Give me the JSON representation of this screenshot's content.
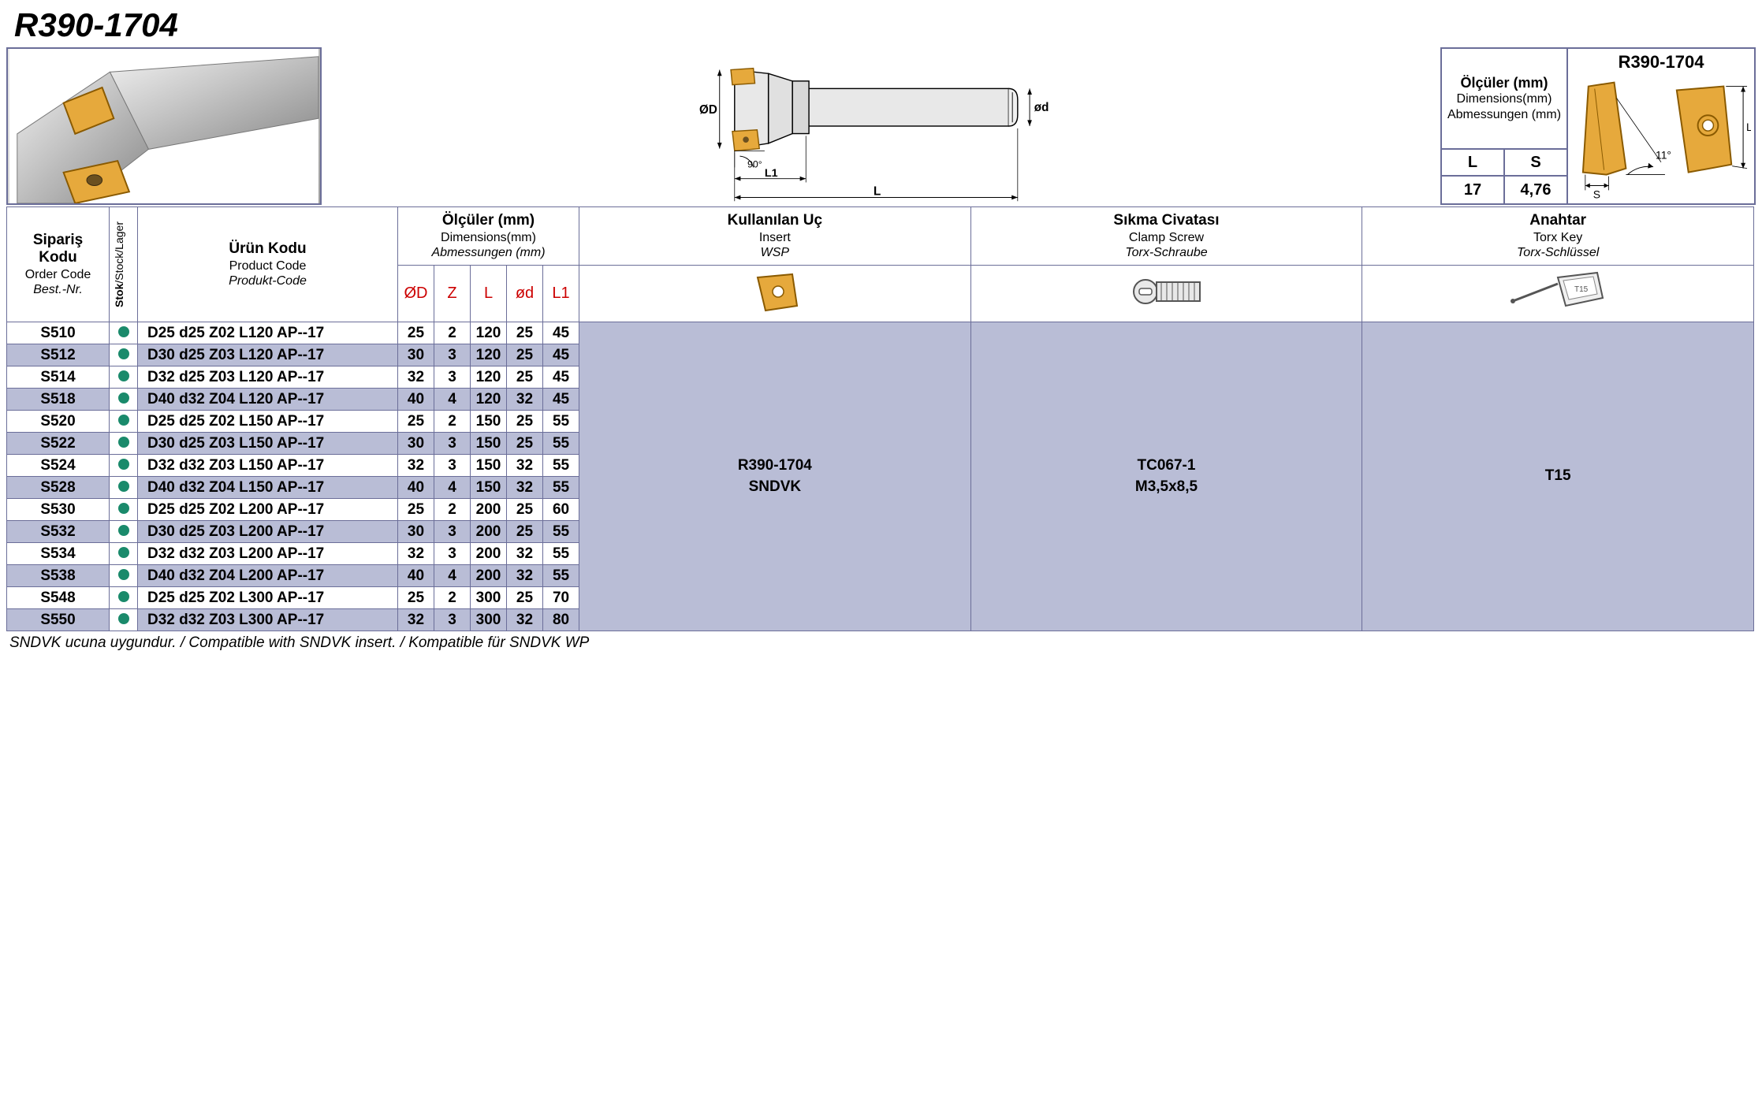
{
  "title": "R390-1704",
  "insert_dims_box": {
    "header_tr": "Ölçüler (mm)",
    "header_en": "Dimensions(mm)",
    "header_de": "Abmessungen (mm)",
    "cols": [
      "L",
      "S"
    ],
    "vals": [
      "17",
      "4,76"
    ],
    "right_title": "R390-1704",
    "angle_label": "11°",
    "s_label": "S",
    "l_label": "L"
  },
  "tech_drawing": {
    "diam_D": "ØD",
    "diam_d": "ød",
    "angle": "90°",
    "L1": "L1",
    "L": "L"
  },
  "main_table": {
    "headers": {
      "order": {
        "tr": "Sipariş Kodu",
        "en": "Order Code",
        "de": "Best.-Nr."
      },
      "stock": {
        "tr": "Stok",
        "en": "Stock",
        "de": "Lager"
      },
      "product": {
        "tr": "Ürün Kodu",
        "en": "Product Code",
        "de": "Produkt-Code"
      },
      "dims": {
        "tr": "Ölçüler (mm)",
        "en": "Dimensions(mm)",
        "de": "Abmessungen (mm)"
      },
      "insert": {
        "tr": "Kullanılan Uç",
        "en": "Insert",
        "de": "WSP"
      },
      "clamp": {
        "tr": "Sıkma Civatası",
        "en": "Clamp Screw",
        "de": "Torx-Schraube"
      },
      "key": {
        "tr": "Anahtar",
        "en": "Torx Key",
        "de": "Torx-Schlüssel"
      }
    },
    "dim_cols": [
      "ØD",
      "Z",
      "L",
      "ød",
      "L1"
    ],
    "merged": {
      "insert": [
        "R390-1704",
        "SNDVK"
      ],
      "clamp": [
        "TC067-1",
        "M3,5x8,5"
      ],
      "key": [
        "T15"
      ]
    },
    "rows": [
      {
        "order": "S510",
        "stock": true,
        "product": "D25 d25 Z02 L120 AP--17",
        "d": [
          "25",
          "2",
          "120",
          "25",
          "45"
        ]
      },
      {
        "order": "S512",
        "stock": true,
        "product": "D30 d25 Z03 L120 AP--17",
        "d": [
          "30",
          "3",
          "120",
          "25",
          "45"
        ]
      },
      {
        "order": "S514",
        "stock": true,
        "product": "D32 d25 Z03 L120 AP--17",
        "d": [
          "32",
          "3",
          "120",
          "25",
          "45"
        ]
      },
      {
        "order": "S518",
        "stock": true,
        "product": "D40 d32 Z04 L120 AP--17",
        "d": [
          "40",
          "4",
          "120",
          "32",
          "45"
        ]
      },
      {
        "order": "S520",
        "stock": true,
        "product": "D25 d25 Z02 L150 AP--17",
        "d": [
          "25",
          "2",
          "150",
          "25",
          "55"
        ]
      },
      {
        "order": "S522",
        "stock": true,
        "product": "D30 d25 Z03 L150 AP--17",
        "d": [
          "30",
          "3",
          "150",
          "25",
          "55"
        ]
      },
      {
        "order": "S524",
        "stock": true,
        "product": "D32 d32 Z03 L150 AP--17",
        "d": [
          "32",
          "3",
          "150",
          "32",
          "55"
        ]
      },
      {
        "order": "S528",
        "stock": true,
        "product": "D40 d32 Z04 L150 AP--17",
        "d": [
          "40",
          "4",
          "150",
          "32",
          "55"
        ]
      },
      {
        "order": "S530",
        "stock": true,
        "product": "D25 d25 Z02 L200 AP--17",
        "d": [
          "25",
          "2",
          "200",
          "25",
          "60"
        ]
      },
      {
        "order": "S532",
        "stock": true,
        "product": "D30 d25 Z03 L200 AP--17",
        "d": [
          "30",
          "3",
          "200",
          "25",
          "55"
        ]
      },
      {
        "order": "S534",
        "stock": true,
        "product": "D32 d32 Z03 L200 AP--17",
        "d": [
          "32",
          "3",
          "200",
          "32",
          "55"
        ]
      },
      {
        "order": "S538",
        "stock": true,
        "product": "D40 d32 Z04 L200 AP--17",
        "d": [
          "40",
          "4",
          "200",
          "32",
          "55"
        ]
      },
      {
        "order": "S548",
        "stock": true,
        "product": "D25 d25 Z02 L300 AP--17",
        "d": [
          "25",
          "2",
          "300",
          "25",
          "70"
        ]
      },
      {
        "order": "S550",
        "stock": true,
        "product": "D32 d32 Z03 L300 AP--17",
        "d": [
          "32",
          "3",
          "300",
          "32",
          "80"
        ]
      }
    ]
  },
  "footnote": "SNDVK ucuna uygundur. / Compatible with SNDVK insert. / Kompatible für SNDVK WP",
  "colors": {
    "border": "#6b6e99",
    "alt_row": "#b9bdd6",
    "dim_header": "#cc0000",
    "stock_dot": "#1a8a6b",
    "insert_gold": "#e6a93c",
    "insert_stroke": "#8a5a00"
  }
}
